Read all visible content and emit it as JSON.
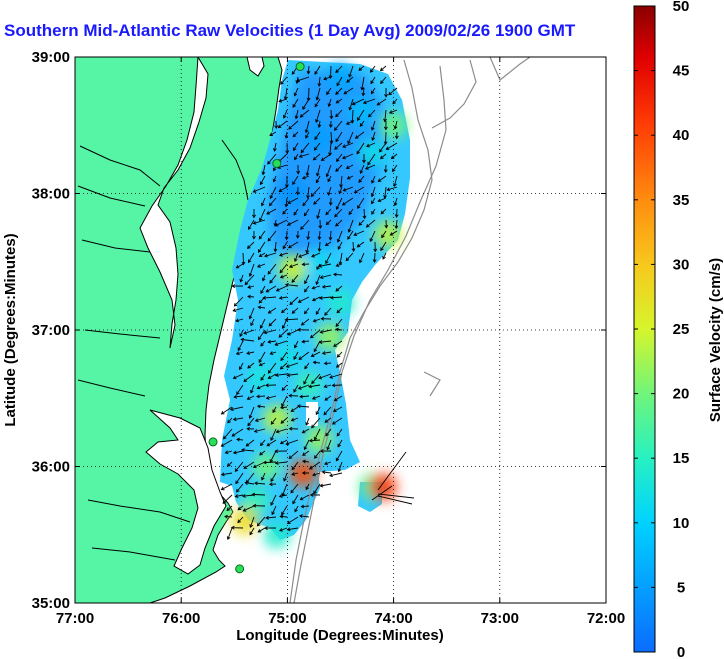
{
  "title": "Southern Mid-Atlantic Raw Velocities (1 Day Avg) 2009/02/26 1900 GMT",
  "colors": {
    "land": "#55f5a5",
    "coast": "#000000",
    "bathymetry": "#8c8c8c",
    "title": "#1a1aff"
  },
  "chart_data": {
    "type": "heatmap",
    "title": "Southern Mid-Atlantic Raw Velocities (1 Day Avg) 2009/02/26 1900 GMT",
    "xlabel": "Longitude (Degrees:Minutes)",
    "ylabel": "Latitude (Degrees:Minutes)",
    "xlim": [
      -77,
      -72
    ],
    "ylim": [
      35,
      39
    ],
    "xticks": [
      -77,
      -76,
      -75,
      -74,
      -73,
      -72
    ],
    "xtick_labels": [
      "77:00",
      "76:00",
      "75:00",
      "74:00",
      "73:00",
      "72:00"
    ],
    "yticks": [
      35,
      36,
      37,
      38,
      39
    ],
    "ytick_labels": [
      "35:00",
      "36:00",
      "37:00",
      "38:00",
      "39:00"
    ],
    "grid": true,
    "colorbar": {
      "label": "Surface Velocity (cm/s)",
      "range": [
        0,
        50
      ],
      "ticks": [
        0,
        5,
        10,
        15,
        20,
        25,
        30,
        35,
        40,
        45,
        50
      ],
      "tick_labels": [
        "0",
        "5",
        "10",
        "15",
        "20",
        "25",
        "30",
        "35",
        "40",
        "45",
        "50"
      ]
    },
    "sites": [
      {
        "lon": -74.88,
        "lat": 38.93
      },
      {
        "lon": -75.1,
        "lat": 38.22
      },
      {
        "lon": -75.7,
        "lat": 36.18
      },
      {
        "lon": -75.45,
        "lat": 35.25
      }
    ],
    "speed_field": [
      {
        "lon": -74.5,
        "lat": 38.85,
        "speed": 6
      },
      {
        "lon": -74.3,
        "lat": 38.6,
        "speed": 8
      },
      {
        "lon": -74.7,
        "lat": 38.4,
        "speed": 5
      },
      {
        "lon": -74.95,
        "lat": 38.0,
        "speed": 4
      },
      {
        "lon": -74.2,
        "lat": 38.3,
        "speed": 12
      },
      {
        "lon": -74.0,
        "lat": 38.5,
        "speed": 20
      },
      {
        "lon": -74.05,
        "lat": 37.7,
        "speed": 24
      },
      {
        "lon": -74.7,
        "lat": 37.5,
        "speed": 11
      },
      {
        "lon": -74.95,
        "lat": 37.45,
        "speed": 25
      },
      {
        "lon": -74.5,
        "lat": 37.2,
        "speed": 14
      },
      {
        "lon": -74.6,
        "lat": 36.95,
        "speed": 22
      },
      {
        "lon": -75.0,
        "lat": 36.8,
        "speed": 12
      },
      {
        "lon": -75.25,
        "lat": 36.65,
        "speed": 13
      },
      {
        "lon": -74.8,
        "lat": 36.6,
        "speed": 16
      },
      {
        "lon": -75.1,
        "lat": 36.35,
        "speed": 24
      },
      {
        "lon": -74.7,
        "lat": 36.2,
        "speed": 22
      },
      {
        "lon": -75.2,
        "lat": 36.0,
        "speed": 20
      },
      {
        "lon": -74.85,
        "lat": 35.95,
        "speed": 40
      },
      {
        "lon": -75.3,
        "lat": 35.75,
        "speed": 16
      },
      {
        "lon": -75.4,
        "lat": 35.6,
        "speed": 28
      },
      {
        "lon": -75.1,
        "lat": 35.5,
        "speed": 14
      },
      {
        "lon": -74.2,
        "lat": 35.85,
        "speed": 18
      },
      {
        "lon": -74.1,
        "lat": 35.85,
        "speed": 42
      }
    ]
  }
}
